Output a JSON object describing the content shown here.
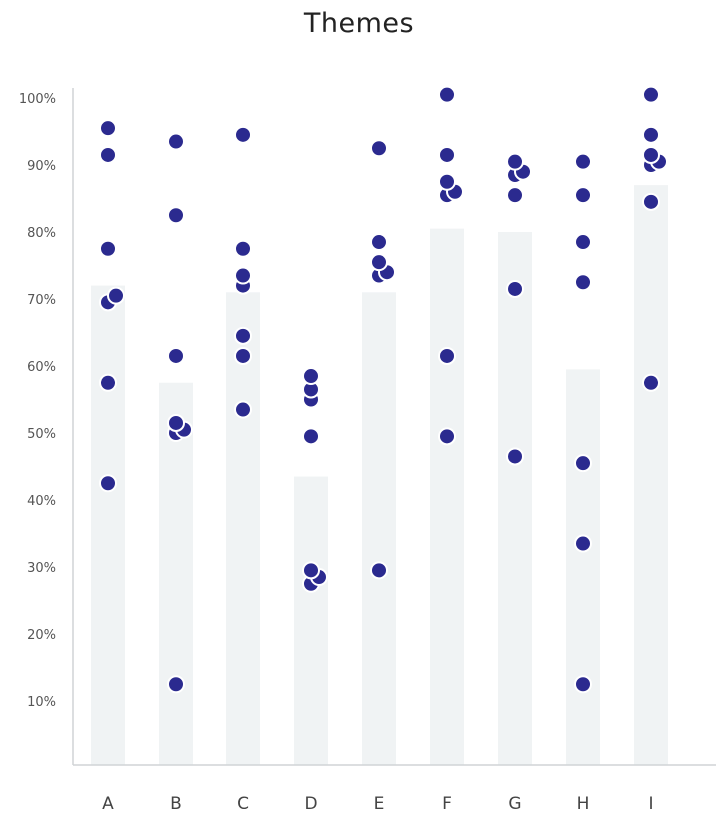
{
  "chart_data": {
    "type": "bar",
    "title": "Themes",
    "xlabel": "",
    "ylabel": "",
    "categories": [
      "A",
      "B",
      "C",
      "D",
      "E",
      "F",
      "G",
      "H",
      "I"
    ],
    "ylim": [
      0,
      100
    ],
    "yticks": [
      10,
      20,
      30,
      40,
      50,
      60,
      70,
      80,
      90,
      100
    ],
    "ytick_labels": [
      "10%",
      "20%",
      "30%",
      "40%",
      "50%",
      "60%",
      "70%",
      "80%",
      "90%",
      "100%"
    ],
    "grid": false,
    "legend": "none",
    "bar_values": [
      72,
      57.5,
      71,
      43.5,
      71,
      80.5,
      80,
      59.5,
      87
    ],
    "points": [
      [
        42.5,
        57.5,
        69.5,
        70.5,
        77.5,
        91.5,
        95.5
      ],
      [
        12.5,
        50.5,
        50,
        51.5,
        61.5,
        82.5,
        93.5
      ],
      [
        53.5,
        61.5,
        64.5,
        72,
        73.5,
        77.5,
        94.5
      ],
      [
        27.5,
        28.5,
        29.5,
        49.5,
        55,
        56.5,
        58.5
      ],
      [
        29.5,
        73.5,
        74,
        75.5,
        78.5,
        92.5
      ],
      [
        49.5,
        61.5,
        85.5,
        86,
        87.5,
        91.5,
        100.5
      ],
      [
        46.5,
        71.5,
        85.5,
        88.5,
        89,
        90.5
      ],
      [
        12.5,
        33.5,
        45.5,
        72.5,
        78.5,
        85.5,
        90.5
      ],
      [
        57.5,
        84.5,
        90,
        90.5,
        91.5,
        94.5,
        100.5
      ]
    ],
    "colors": {
      "bar": "#f0f3f4",
      "point": "#2b2a8f",
      "point_stroke": "#ffffff",
      "axis": "#d0d4d6"
    }
  }
}
